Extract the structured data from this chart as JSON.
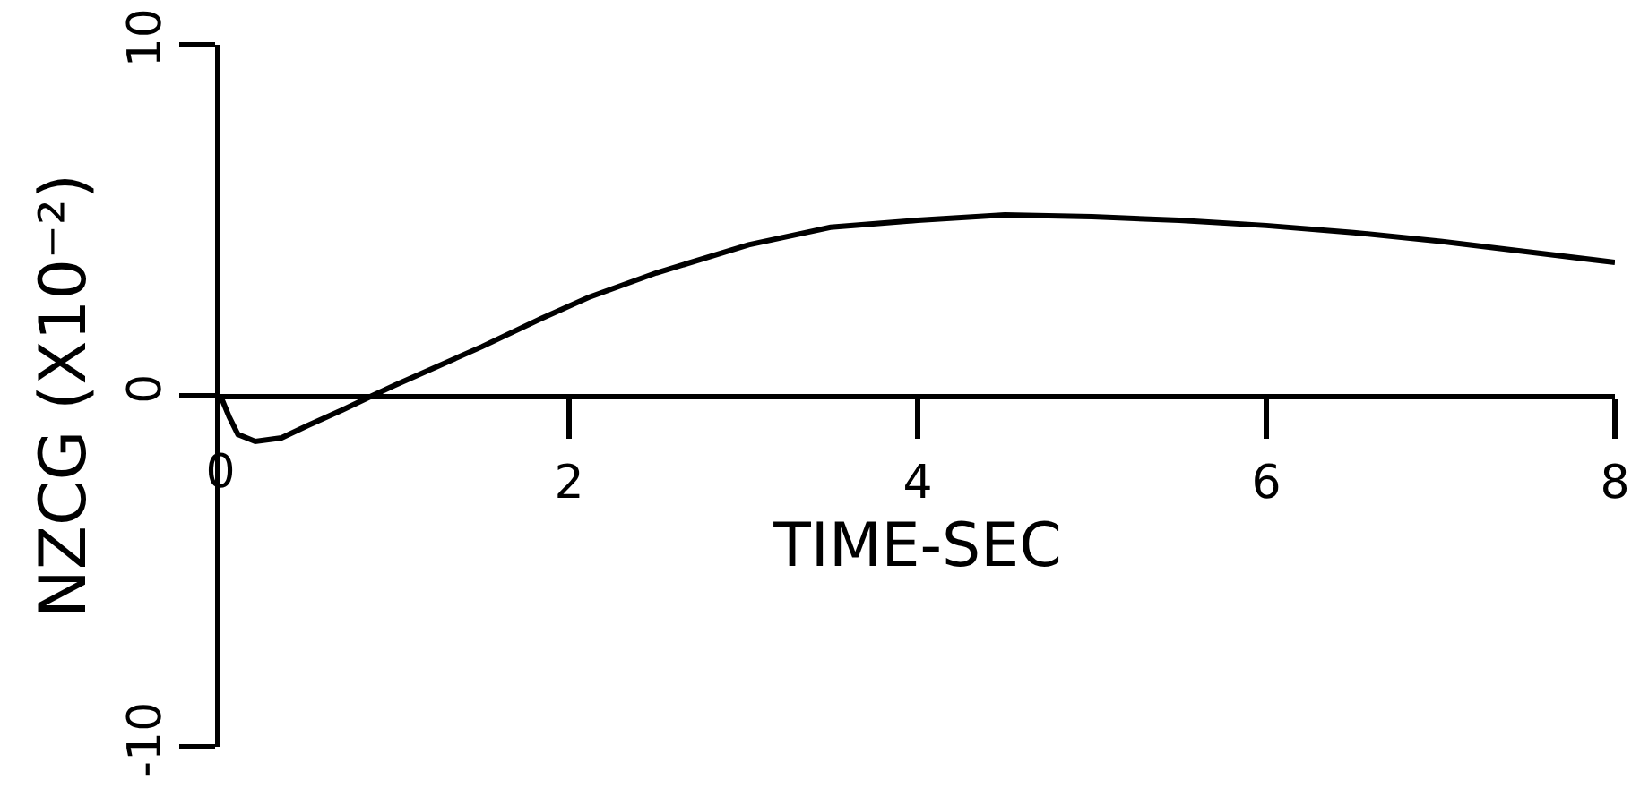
{
  "chart_data": {
    "type": "line",
    "xlabel": "TIME-SEC",
    "ylabel": "NZCG (X10⁻²)",
    "x": [
      0,
      0.05,
      0.1,
      0.2,
      0.35,
      0.5,
      0.7,
      0.87,
      1.0,
      1.25,
      1.5,
      1.84,
      2.11,
      2.5,
      3.03,
      3.5,
      4.0,
      4.5,
      5.0,
      5.5,
      6.0,
      6.5,
      7.0,
      7.5,
      8.0
    ],
    "series": [
      {
        "color": "#000000",
        "values": [
          0,
          -0.6,
          -1.1,
          -1.3,
          -1.2,
          -0.85,
          -0.4,
          0,
          0.3,
          0.85,
          1.4,
          2.2,
          2.8,
          3.5,
          4.3,
          4.8,
          5.0,
          5.15,
          5.1,
          5.0,
          4.85,
          4.65,
          4.4,
          4.1,
          3.8
        ]
      }
    ],
    "xlim": [
      0,
      8
    ],
    "xticks": [
      0,
      2,
      4,
      6,
      8
    ],
    "ylim": [
      -10,
      10
    ],
    "yticks": [
      -10,
      0,
      10
    ],
    "marker": "none",
    "line_style": "solid"
  }
}
